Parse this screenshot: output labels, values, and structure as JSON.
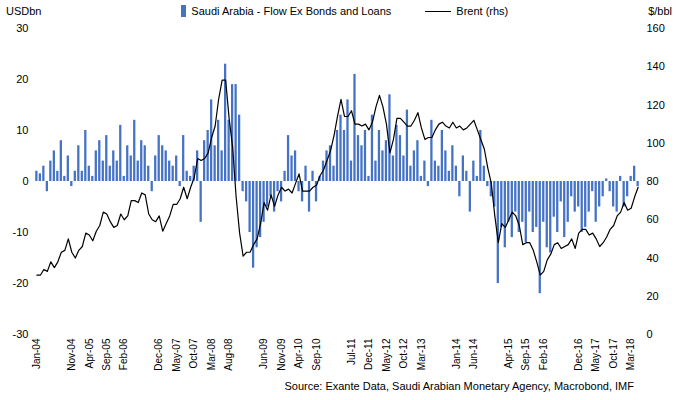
{
  "chart_data": {
    "type": "bar",
    "y_label": "USDbn",
    "y2_label": "$/bbl",
    "caption": "Source: Exante Data, Saudi Arabian Monetary Agency, Macrobond, IMF",
    "legend": "top",
    "grid": false,
    "categories": [
      "Jan-04",
      null,
      null,
      null,
      null,
      null,
      null,
      null,
      null,
      null,
      "Nov-04",
      null,
      null,
      null,
      null,
      "Apr-05",
      null,
      null,
      null,
      null,
      "Sep-05",
      null,
      null,
      null,
      null,
      "Feb-06",
      null,
      null,
      null,
      null,
      null,
      null,
      null,
      null,
      null,
      "Dec-06",
      null,
      null,
      null,
      null,
      "May-07",
      null,
      null,
      null,
      null,
      "Oct-07",
      null,
      null,
      null,
      null,
      "Mar-08",
      null,
      null,
      null,
      null,
      "Aug-08",
      null,
      null,
      null,
      null,
      null,
      null,
      null,
      null,
      null,
      "Jun-09",
      null,
      null,
      null,
      null,
      "Nov-09",
      null,
      null,
      null,
      null,
      "Apr-10",
      null,
      null,
      null,
      null,
      "Sep-10",
      null,
      null,
      null,
      null,
      null,
      null,
      null,
      null,
      null,
      "Jul-11",
      null,
      null,
      null,
      null,
      "Dec-11",
      null,
      null,
      null,
      null,
      "May-12",
      null,
      null,
      null,
      null,
      "Oct-12",
      null,
      null,
      null,
      null,
      "Mar-13",
      null,
      null,
      null,
      null,
      null,
      null,
      null,
      null,
      null,
      "Jan-14",
      null,
      null,
      null,
      null,
      "Jun-14",
      null,
      null,
      null,
      null,
      null,
      null,
      null,
      null,
      null,
      "Apr-15",
      null,
      null,
      null,
      null,
      "Sep-15",
      null,
      null,
      null,
      null,
      "Feb-16",
      null,
      null,
      null,
      null,
      null,
      null,
      null,
      null,
      null,
      "Dec-16",
      null,
      null,
      null,
      null,
      "May-17",
      null,
      null,
      null,
      null,
      "Oct-17",
      null,
      null,
      null,
      null,
      "Mar-18",
      null,
      null
    ],
    "series": [
      {
        "name": "Saudi Arabia - Flow Ex Bonds and Loans",
        "type": "bar",
        "color": "#4472c4",
        "values": [
          2,
          1.5,
          3,
          -2,
          4,
          6,
          2,
          8,
          1,
          5,
          -1,
          2,
          7,
          2,
          10,
          3,
          1,
          6,
          8,
          4,
          9,
          3,
          6,
          4,
          11,
          1,
          7,
          5,
          12,
          4,
          8,
          7,
          3,
          -2,
          5,
          9,
          7,
          6,
          4,
          3,
          5,
          -1,
          9,
          2,
          1,
          3,
          6,
          -8,
          8,
          10,
          16,
          7,
          12,
          6,
          23,
          12,
          19,
          19,
          13,
          -2,
          -4,
          -10,
          -17,
          -13,
          -11,
          -8,
          -5,
          -3,
          -6,
          -2,
          -4,
          2,
          9,
          5,
          6,
          -2,
          -4,
          3,
          -6,
          2,
          -4,
          1,
          4,
          6,
          7,
          3,
          10,
          13,
          10,
          16,
          4,
          21,
          9,
          7,
          10,
          1,
          13,
          4,
          10,
          6,
          8,
          17,
          5,
          11,
          9,
          5,
          14,
          3,
          6,
          8,
          1,
          4,
          -1,
          12,
          4,
          3,
          10,
          6,
          2,
          7,
          3,
          -3,
          5,
          2,
          -6,
          4,
          1,
          10,
          3,
          -1,
          -3,
          -5,
          -20,
          -9,
          -13,
          -8,
          -11,
          -6,
          -10,
          -8,
          -12,
          -6,
          -10,
          -9,
          -22,
          -8,
          -13,
          -14,
          -7,
          -10,
          -4,
          -11,
          -8,
          -3,
          -6,
          -5,
          -10,
          -9,
          -6,
          -2,
          -8,
          -5,
          -3,
          0.5,
          -2,
          -5,
          -6,
          1,
          -5,
          -3,
          1,
          3,
          -1
        ]
      },
      {
        "name": "Brent (rhs)",
        "type": "line",
        "color": "#000000",
        "axis": "y2",
        "values": [
          31,
          31,
          34,
          33,
          38,
          35,
          38,
          43,
          44,
          50,
          43,
          40,
          44,
          46,
          53,
          52,
          49,
          54,
          57,
          64,
          63,
          59,
          56,
          57,
          63,
          60,
          62,
          70,
          70,
          69,
          74,
          73,
          63,
          60,
          59,
          62,
          54,
          58,
          62,
          68,
          68,
          71,
          77,
          71,
          77,
          82,
          92,
          91,
          92,
          95,
          103,
          109,
          123,
          133,
          133,
          113,
          98,
          72,
          53,
          41,
          43,
          43,
          47,
          50,
          58,
          69,
          65,
          73,
          67,
          73,
          77,
          75,
          76,
          74,
          79,
          84,
          75,
          75,
          75,
          77,
          78,
          83,
          86,
          91,
          96,
          104,
          114,
          123,
          114,
          114,
          117,
          110,
          110,
          109,
          110,
          107,
          111,
          119,
          125,
          119,
          110,
          95,
          102,
          113,
          113,
          111,
          109,
          109,
          112,
          116,
          108,
          102,
          103,
          103,
          107,
          110,
          111,
          109,
          108,
          111,
          108,
          109,
          107,
          108,
          110,
          112,
          107,
          102,
          97,
          87,
          79,
          62,
          48,
          58,
          56,
          60,
          64,
          62,
          57,
          47,
          48,
          48,
          44,
          38,
          31,
          33,
          39,
          42,
          47,
          48,
          45,
          46,
          47,
          50,
          45,
          53,
          55,
          55,
          52,
          53,
          50,
          46,
          48,
          51,
          55,
          57,
          62,
          64,
          69,
          65,
          66,
          72,
          77
        ]
      }
    ],
    "ylim": [
      -30,
      30
    ],
    "yticks": [
      -30,
      -20,
      -10,
      0,
      10,
      20,
      30
    ],
    "y2lim": [
      0,
      160
    ],
    "y2ticks": [
      0,
      20,
      40,
      60,
      80,
      100,
      120,
      140,
      160
    ]
  }
}
